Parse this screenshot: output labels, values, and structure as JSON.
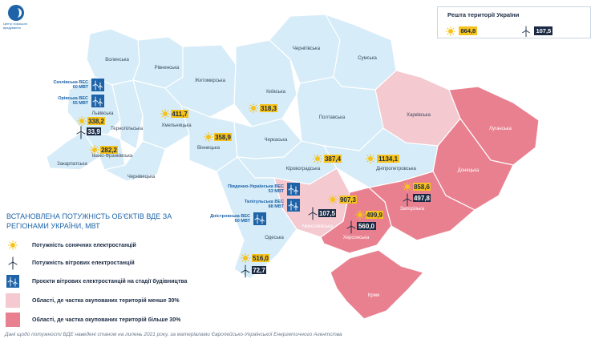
{
  "logo": {
    "text": "Центр хорошого врядування"
  },
  "rest_of_ukraine": {
    "title": "Решта території України",
    "solar": "864,8",
    "wind": "107,5"
  },
  "legend": {
    "title_line1": "ВСТАНОВЛЕНА ПОТУЖНІСТЬ ОБ'ЄКТІВ ВДЕ ЗА",
    "title_line2": "РЕГІОНАМИ УКРАЇНИ, МВТ",
    "solar": "Потужність сонячних електростанцій",
    "wind": "Потужність вітрових електростанцій",
    "projects": "Проєкти вітрових електростанцій на стадії будівництва",
    "occupied_lt30": "Області, де частка окупованих територій менше 30%",
    "occupied_gt30": "Області, де частка окупованих територій більше 30%"
  },
  "colors": {
    "region": "#d6ecf8",
    "border": "#ffffff",
    "occupied_lt30": "#f4c9d0",
    "occupied_gt30": "#e9808f",
    "solar": "#f6c21c",
    "wind": "#1a2a44",
    "project": "#1e63a8",
    "title": "#1e63a8"
  },
  "regions": {
    "volynska": "Волинська",
    "rivnenska": "Рівненська",
    "zhytomyrska": "Житомирська",
    "kyivska": "Київська",
    "chernihivska": "Чернігівська",
    "sumska": "Сумська",
    "kharkivska": "Харківська",
    "luhanska": "Луганська",
    "lvivska": "Львівська",
    "ternopilska": "Тернопільська",
    "khmelnytska": "Хмельницька",
    "vinnytska": "Вінницька",
    "cherkaska": "Черкаська",
    "poltavska": "Полтавська",
    "donetska": "Донецька",
    "zakarpatska": "Закарпатська",
    "ivano_frankivska": "Івано-Франківська",
    "chernivetska": "Чернівецька",
    "kirovohradska": "Кіровоградська",
    "dnipropetrovska": "Дніпропетровська",
    "zaporizka": "Запорізька",
    "mykolaivska": "Миколаївська",
    "odeska": "Одеська",
    "khersonska": "Херсонська",
    "krym": "Крим"
  },
  "values": {
    "lviv_solar": "338,2",
    "lviv_wind": "33,9",
    "ivano_solar": "282,2",
    "khmel_solar": "411,7",
    "vinn_solar": "358,9",
    "kyiv_solar": "318,3",
    "kirov_solar": "387,4",
    "dnipro_solar": "1134,1",
    "myk_solar": "907,3",
    "myk_wind": "107,5",
    "kherson_solar": "499,9",
    "kherson_wind": "560,0",
    "zap_solar": "858,6",
    "zap_wind": "497,8",
    "odesa_solar": "516,0",
    "odesa_wind": "72,7"
  },
  "projects": {
    "skole_1": "Сколівська ВЕС",
    "skole_2": "60 МВТ",
    "orivska_1": "Орівська ВЕС",
    "orivska_2": "55 МВТ",
    "pivd_1": "Південно-Українська ВЕС",
    "pivd_2": "53 МВТ",
    "tylih_1": "Тилігульська ВЕС",
    "tylih_2": "88 МВТ",
    "dnist_1": "Дністровська ВЕС",
    "dnist_2": "60 МВТ"
  },
  "footnote": "Дані щодо потужності ВДЕ наведені станом на липень 2021 року, за матеріалами Європейсько-Української Енергетичного Агентства"
}
